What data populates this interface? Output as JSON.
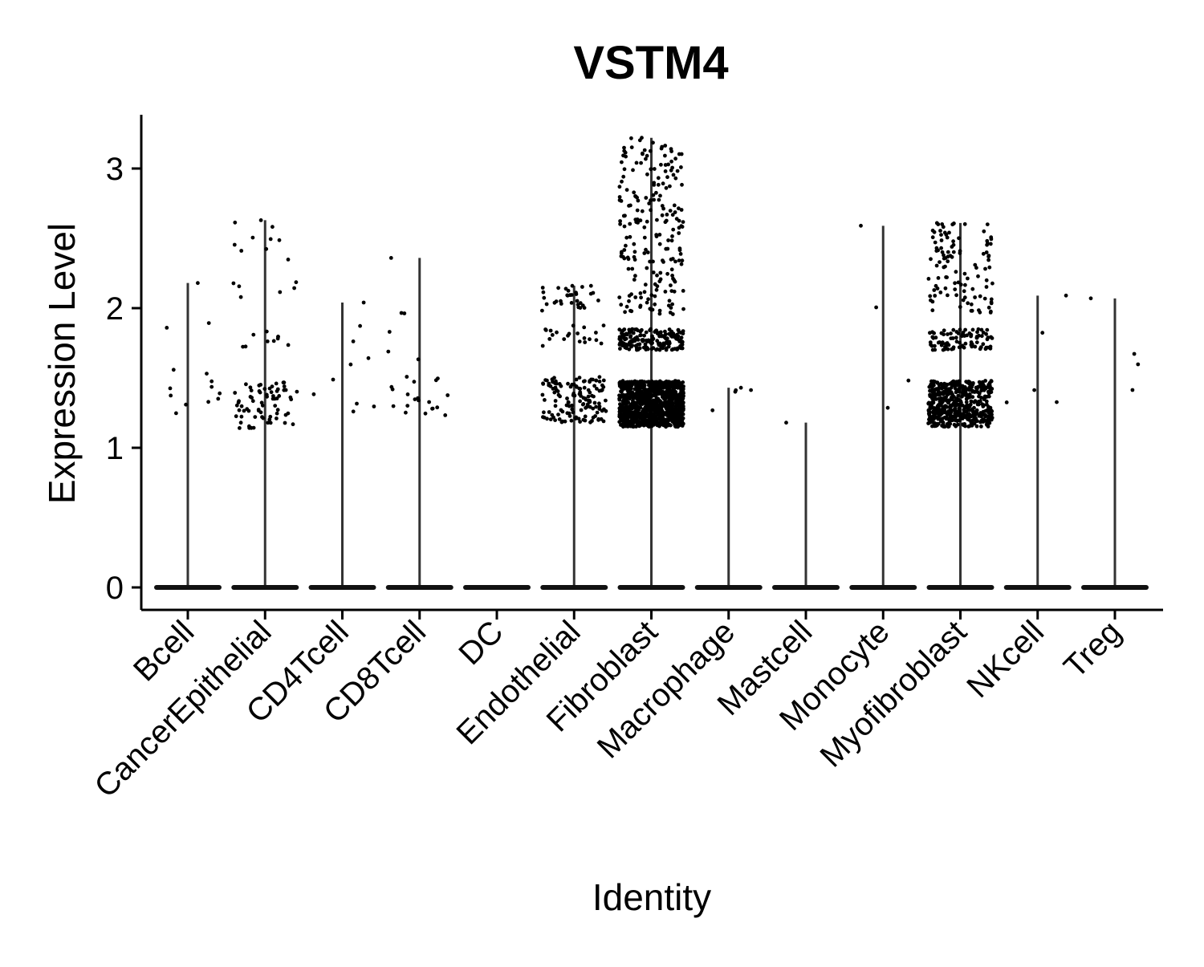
{
  "chart_data": {
    "type": "violin",
    "title": "VSTM4",
    "xlabel": "Identity",
    "ylabel": "Expression Level",
    "ylim": [
      -0.15,
      3.4
    ],
    "yticks": [
      0,
      1,
      2,
      3
    ],
    "categories": [
      "Bcell",
      "CancerEpithelial",
      "CD4Tcell",
      "CD8Tcell",
      "DC",
      "Endothelial",
      "Fibroblast",
      "Macrophage",
      "Mastcell",
      "Monocyte",
      "Myofibroblast",
      "NKcell",
      "Treg"
    ],
    "max_values": [
      2.18,
      2.63,
      2.04,
      2.36,
      0,
      2.16,
      3.22,
      1.43,
      1.18,
      2.59,
      2.61,
      2.09,
      2.07
    ],
    "nonzero_points": [
      {
        "n": 14,
        "low": 1.2,
        "high": 2.18
      },
      {
        "n": 95,
        "low": 1.14,
        "high": 2.63
      },
      {
        "n": 10,
        "low": 1.25,
        "high": 2.04
      },
      {
        "n": 26,
        "low": 1.22,
        "high": 2.36
      },
      {
        "n": 0,
        "low": 0,
        "high": 0
      },
      {
        "n": 190,
        "low": 1.18,
        "high": 2.16
      },
      {
        "n": 1400,
        "low": 1.15,
        "high": 3.22
      },
      {
        "n": 5,
        "low": 1.19,
        "high": 1.43
      },
      {
        "n": 1,
        "low": 1.18,
        "high": 1.18
      },
      {
        "n": 4,
        "low": 1.17,
        "high": 2.59
      },
      {
        "n": 700,
        "low": 1.15,
        "high": 2.61
      },
      {
        "n": 5,
        "low": 1.22,
        "high": 2.09
      },
      {
        "n": 4,
        "low": 1.37,
        "high": 2.07
      }
    ],
    "grid": false,
    "legend": "none"
  }
}
